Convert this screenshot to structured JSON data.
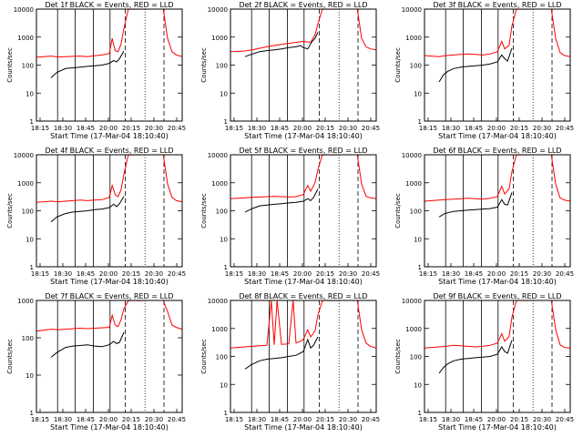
{
  "chart_data": [
    {
      "type": "line",
      "title": "Det 1f BLACK = Events, RED = LLD",
      "xlabel": "Start Time (17-Mar-04 18:10:40)",
      "ylabel": "Counts/sec",
      "x_ticks": [
        "18:15",
        "18:30",
        "18:45",
        "20:00",
        "20:15",
        "20:30",
        "20:45"
      ],
      "y_ticks": [
        "1",
        "10",
        "100",
        "1000",
        "10000"
      ],
      "y_scale": "log",
      "ylim": [
        1,
        10000
      ],
      "series": [
        {
          "name": "BLACK",
          "color": "#000000",
          "x": [
            0.1,
            0.14,
            0.2,
            0.25,
            0.3,
            0.35,
            0.4,
            0.45,
            0.5,
            0.53,
            0.55,
            0.57,
            0.6
          ],
          "y": [
            35,
            55,
            75,
            80,
            85,
            90,
            95,
            100,
            115,
            145,
            130,
            170,
            320
          ]
        },
        {
          "name": "RED",
          "color": "#ff0000",
          "x": [
            0.0,
            0.05,
            0.1,
            0.15,
            0.2,
            0.25,
            0.3,
            0.35,
            0.4,
            0.45,
            0.5,
            0.52,
            0.54,
            0.56,
            0.58,
            0.6,
            0.63,
            0.66,
            0.7,
            0.75,
            0.8,
            0.87,
            0.9,
            0.93,
            0.96,
            1.0
          ],
          "y": [
            190,
            200,
            210,
            195,
            200,
            205,
            210,
            200,
            215,
            230,
            260,
            900,
            330,
            300,
            550,
            2000,
            9800,
            10000,
            9900,
            10000,
            10000,
            10000,
            900,
            300,
            230,
            200
          ]
        }
      ]
    },
    {
      "type": "line",
      "title": "Det 2f BLACK = Events, RED = LLD",
      "xlabel": "Start Time (17-Mar-04 18:10:40)",
      "ylabel": "Counts/sec",
      "x_ticks": [
        "18:15",
        "18:30",
        "18:45",
        "20:00",
        "20:15",
        "20:30",
        "20:45"
      ],
      "y_ticks": [
        "1",
        "10",
        "100",
        "1000",
        "10000"
      ],
      "y_scale": "log",
      "ylim": [
        1,
        10000
      ],
      "series": [
        {
          "name": "BLACK",
          "color": "#000000",
          "x": [
            0.1,
            0.15,
            0.2,
            0.25,
            0.3,
            0.35,
            0.4,
            0.45,
            0.48,
            0.5,
            0.53,
            0.56,
            0.58,
            0.6
          ],
          "y": [
            200,
            250,
            300,
            330,
            350,
            380,
            420,
            450,
            500,
            420,
            380,
            700,
            900,
            1500
          ]
        },
        {
          "name": "RED",
          "color": "#ff0000",
          "x": [
            0.0,
            0.05,
            0.1,
            0.15,
            0.2,
            0.25,
            0.3,
            0.35,
            0.4,
            0.45,
            0.5,
            0.55,
            0.58,
            0.6,
            0.63,
            0.66,
            0.7,
            0.75,
            0.8,
            0.87,
            0.9,
            0.93,
            0.96,
            1.0
          ],
          "y": [
            300,
            310,
            320,
            350,
            400,
            450,
            500,
            550,
            600,
            650,
            700,
            650,
            1200,
            3000,
            9800,
            10000,
            9900,
            10000,
            10000,
            10000,
            900,
            450,
            380,
            350
          ]
        }
      ]
    },
    {
      "type": "line",
      "title": "Det 3f BLACK = Events, RED = LLD",
      "xlabel": "Start Time (17-Mar-04 18:10:40)",
      "ylabel": "Counts/sec",
      "x_ticks": [
        "18:15",
        "18:30",
        "18:45",
        "20:00",
        "20:15",
        "20:30",
        "20:45"
      ],
      "y_ticks": [
        "1",
        "10",
        "100",
        "1000",
        "10000"
      ],
      "y_scale": "log",
      "ylim": [
        1,
        10000
      ],
      "series": [
        {
          "name": "BLACK",
          "color": "#000000",
          "x": [
            0.1,
            0.13,
            0.16,
            0.2,
            0.25,
            0.3,
            0.35,
            0.4,
            0.45,
            0.5,
            0.53,
            0.55,
            0.57,
            0.6
          ],
          "y": [
            25,
            45,
            60,
            75,
            85,
            90,
            95,
            100,
            110,
            130,
            230,
            170,
            140,
            400
          ]
        },
        {
          "name": "RED",
          "color": "#ff0000",
          "x": [
            0.0,
            0.05,
            0.1,
            0.15,
            0.2,
            0.25,
            0.3,
            0.35,
            0.4,
            0.45,
            0.5,
            0.53,
            0.55,
            0.58,
            0.6,
            0.63,
            0.66,
            0.7,
            0.75,
            0.8,
            0.87,
            0.9,
            0.93,
            0.96,
            1.0
          ],
          "y": [
            220,
            210,
            200,
            220,
            230,
            240,
            250,
            240,
            230,
            250,
            300,
            700,
            380,
            500,
            2500,
            9800,
            10000,
            9900,
            10000,
            10000,
            10000,
            900,
            280,
            220,
            200
          ]
        }
      ]
    },
    {
      "type": "line",
      "title": "Det 4f BLACK = Events, RED = LLD",
      "xlabel": "Start Time (17-Mar-04 18:10:40)",
      "ylabel": "Counts/sec",
      "x_ticks": [
        "18:15",
        "18:30",
        "18:45",
        "20:00",
        "20:15",
        "20:30",
        "20:45"
      ],
      "y_ticks": [
        "1",
        "10",
        "100",
        "1000",
        "10000"
      ],
      "y_scale": "log",
      "ylim": [
        1,
        10000
      ],
      "series": [
        {
          "name": "BLACK",
          "color": "#000000",
          "x": [
            0.1,
            0.14,
            0.2,
            0.25,
            0.3,
            0.35,
            0.4,
            0.45,
            0.5,
            0.53,
            0.55,
            0.57,
            0.6
          ],
          "y": [
            40,
            60,
            80,
            90,
            95,
            100,
            110,
            115,
            130,
            170,
            140,
            180,
            330
          ]
        },
        {
          "name": "RED",
          "color": "#ff0000",
          "x": [
            0.0,
            0.05,
            0.1,
            0.15,
            0.2,
            0.25,
            0.3,
            0.35,
            0.4,
            0.45,
            0.5,
            0.52,
            0.54,
            0.56,
            0.58,
            0.6,
            0.63,
            0.66,
            0.7,
            0.75,
            0.8,
            0.87,
            0.9,
            0.93,
            0.96,
            1.0
          ],
          "y": [
            200,
            210,
            220,
            210,
            220,
            230,
            240,
            230,
            240,
            250,
            300,
            800,
            380,
            320,
            550,
            2000,
            9800,
            10000,
            9900,
            10000,
            10000,
            10000,
            900,
            300,
            230,
            210
          ]
        }
      ]
    },
    {
      "type": "line",
      "title": "Det 5f BLACK = Events, RED = LLD",
      "xlabel": "Start Time (17-Mar-04 18:10:40)",
      "ylabel": "Counts/sec",
      "x_ticks": [
        "18:15",
        "18:30",
        "18:45",
        "20:00",
        "20:15",
        "20:30",
        "20:45"
      ],
      "y_ticks": [
        "1",
        "10",
        "100",
        "1000",
        "10000"
      ],
      "y_scale": "log",
      "ylim": [
        1,
        10000
      ],
      "series": [
        {
          "name": "BLACK",
          "color": "#000000",
          "x": [
            0.1,
            0.15,
            0.2,
            0.25,
            0.3,
            0.35,
            0.4,
            0.45,
            0.5,
            0.53,
            0.55,
            0.57,
            0.6
          ],
          "y": [
            90,
            120,
            150,
            160,
            170,
            180,
            190,
            200,
            220,
            270,
            230,
            300,
            600
          ]
        },
        {
          "name": "RED",
          "color": "#ff0000",
          "x": [
            0.0,
            0.05,
            0.1,
            0.15,
            0.2,
            0.25,
            0.3,
            0.35,
            0.4,
            0.45,
            0.5,
            0.53,
            0.55,
            0.58,
            0.6,
            0.63,
            0.66,
            0.7,
            0.75,
            0.8,
            0.87,
            0.9,
            0.93,
            0.96,
            1.0
          ],
          "y": [
            270,
            280,
            290,
            300,
            310,
            320,
            330,
            320,
            310,
            320,
            380,
            800,
            500,
            1000,
            3000,
            9800,
            10000,
            9900,
            10000,
            10000,
            10000,
            900,
            330,
            290,
            270
          ]
        }
      ]
    },
    {
      "type": "line",
      "title": "Det 6f BLACK = Events, RED = LLD",
      "xlabel": "Start Time (17-Mar-04 18:10:40)",
      "ylabel": "Counts/sec",
      "x_ticks": [
        "18:15",
        "18:30",
        "18:45",
        "20:00",
        "20:15",
        "20:30",
        "20:45"
      ],
      "y_ticks": [
        "1",
        "10",
        "100",
        "1000",
        "10000"
      ],
      "y_scale": "log",
      "ylim": [
        1,
        10000
      ],
      "series": [
        {
          "name": "BLACK",
          "color": "#000000",
          "x": [
            0.1,
            0.14,
            0.2,
            0.25,
            0.3,
            0.35,
            0.4,
            0.45,
            0.5,
            0.53,
            0.55,
            0.57,
            0.6
          ],
          "y": [
            60,
            80,
            95,
            100,
            105,
            110,
            115,
            120,
            135,
            250,
            170,
            160,
            450
          ]
        },
        {
          "name": "RED",
          "color": "#ff0000",
          "x": [
            0.0,
            0.05,
            0.1,
            0.15,
            0.2,
            0.25,
            0.3,
            0.35,
            0.4,
            0.45,
            0.5,
            0.53,
            0.55,
            0.58,
            0.6,
            0.63,
            0.66,
            0.7,
            0.75,
            0.8,
            0.87,
            0.9,
            0.93,
            0.96,
            1.0
          ],
          "y": [
            220,
            230,
            240,
            250,
            260,
            270,
            280,
            270,
            260,
            280,
            320,
            750,
            400,
            600,
            2500,
            9800,
            10000,
            9900,
            10000,
            10000,
            10000,
            900,
            290,
            240,
            220
          ]
        }
      ]
    },
    {
      "type": "line",
      "title": "Det 7f BLACK = Events, RED = LLD",
      "xlabel": "Start Time (17-Mar-04 18:10:40)",
      "ylabel": "Counts/sec",
      "x_ticks": [
        "18:15",
        "18:30",
        "18:45",
        "20:00",
        "20:15",
        "20:30",
        "20:45"
      ],
      "y_ticks": [
        "1",
        "10",
        "100",
        "1000"
      ],
      "y_scale": "log",
      "ylim": [
        1,
        1000
      ],
      "series": [
        {
          "name": "BLACK",
          "color": "#000000",
          "x": [
            0.1,
            0.14,
            0.2,
            0.25,
            0.3,
            0.35,
            0.4,
            0.45,
            0.5,
            0.53,
            0.55,
            0.57,
            0.6
          ],
          "y": [
            30,
            40,
            55,
            60,
            62,
            65,
            60,
            58,
            65,
            80,
            70,
            75,
            140
          ]
        },
        {
          "name": "RED",
          "color": "#ff0000",
          "x": [
            0.0,
            0.05,
            0.1,
            0.15,
            0.2,
            0.25,
            0.3,
            0.35,
            0.4,
            0.45,
            0.5,
            0.52,
            0.54,
            0.56,
            0.58,
            0.6,
            0.63,
            0.66,
            0.7,
            0.75,
            0.8,
            0.87,
            0.9,
            0.93,
            0.96,
            1.0
          ],
          "y": [
            150,
            160,
            170,
            165,
            170,
            175,
            180,
            175,
            180,
            185,
            190,
            400,
            220,
            200,
            300,
            600,
            980,
            1000,
            990,
            1000,
            1000,
            1000,
            500,
            220,
            190,
            170
          ]
        }
      ]
    },
    {
      "type": "line",
      "title": "Det 8f BLACK = Events, RED = LLD",
      "xlabel": "Start Time (17-Mar-04 18:10:40)",
      "ylabel": "Counts/sec",
      "x_ticks": [
        "18:15",
        "18:30",
        "18:45",
        "20:00",
        "20:15",
        "20:30",
        "20:45"
      ],
      "y_ticks": [
        "1",
        "10",
        "100",
        "1000",
        "10000"
      ],
      "y_scale": "log",
      "ylim": [
        1,
        10000
      ],
      "series": [
        {
          "name": "BLACK",
          "color": "#000000",
          "x": [
            0.1,
            0.14,
            0.2,
            0.25,
            0.3,
            0.35,
            0.4,
            0.45,
            0.5,
            0.53,
            0.55,
            0.57,
            0.6
          ],
          "y": [
            35,
            50,
            70,
            80,
            85,
            90,
            100,
            110,
            150,
            400,
            200,
            250,
            500
          ]
        },
        {
          "name": "RED",
          "color": "#ff0000",
          "x": [
            0.0,
            0.05,
            0.1,
            0.15,
            0.2,
            0.25,
            0.28,
            0.3,
            0.32,
            0.35,
            0.4,
            0.43,
            0.45,
            0.48,
            0.5,
            0.53,
            0.55,
            0.58,
            0.6,
            0.63,
            0.66,
            0.7,
            0.75,
            0.8,
            0.87,
            0.9,
            0.93,
            0.96,
            1.0
          ],
          "y": [
            200,
            210,
            220,
            230,
            240,
            250,
            10000,
            260,
            10000,
            270,
            280,
            10000,
            300,
            350,
            400,
            900,
            500,
            800,
            3000,
            9800,
            10000,
            9900,
            10000,
            10000,
            10000,
            900,
            300,
            230,
            200
          ]
        }
      ]
    },
    {
      "type": "line",
      "title": "Det 9f BLACK = Events, RED = LLD",
      "xlabel": "Start Time (17-Mar-04 18:10:40)",
      "ylabel": "Counts/sec",
      "x_ticks": [
        "18:15",
        "18:30",
        "18:45",
        "20:00",
        "20:15",
        "20:30",
        "20:45"
      ],
      "y_ticks": [
        "1",
        "10",
        "100",
        "1000",
        "10000"
      ],
      "y_scale": "log",
      "ylim": [
        1,
        10000
      ],
      "series": [
        {
          "name": "BLACK",
          "color": "#000000",
          "x": [
            0.1,
            0.13,
            0.16,
            0.2,
            0.25,
            0.3,
            0.35,
            0.4,
            0.45,
            0.5,
            0.53,
            0.55,
            0.57,
            0.6
          ],
          "y": [
            25,
            40,
            55,
            70,
            80,
            85,
            90,
            95,
            100,
            120,
            220,
            150,
            130,
            380
          ]
        },
        {
          "name": "RED",
          "color": "#ff0000",
          "x": [
            0.0,
            0.05,
            0.1,
            0.15,
            0.2,
            0.25,
            0.3,
            0.35,
            0.4,
            0.45,
            0.5,
            0.53,
            0.55,
            0.58,
            0.6,
            0.63,
            0.66,
            0.7,
            0.75,
            0.8,
            0.87,
            0.9,
            0.93,
            0.96,
            1.0
          ],
          "y": [
            200,
            210,
            220,
            230,
            250,
            240,
            230,
            220,
            230,
            250,
            300,
            650,
            350,
            500,
            2500,
            9800,
            10000,
            9900,
            10000,
            10000,
            10000,
            900,
            260,
            210,
            200
          ]
        }
      ]
    }
  ]
}
